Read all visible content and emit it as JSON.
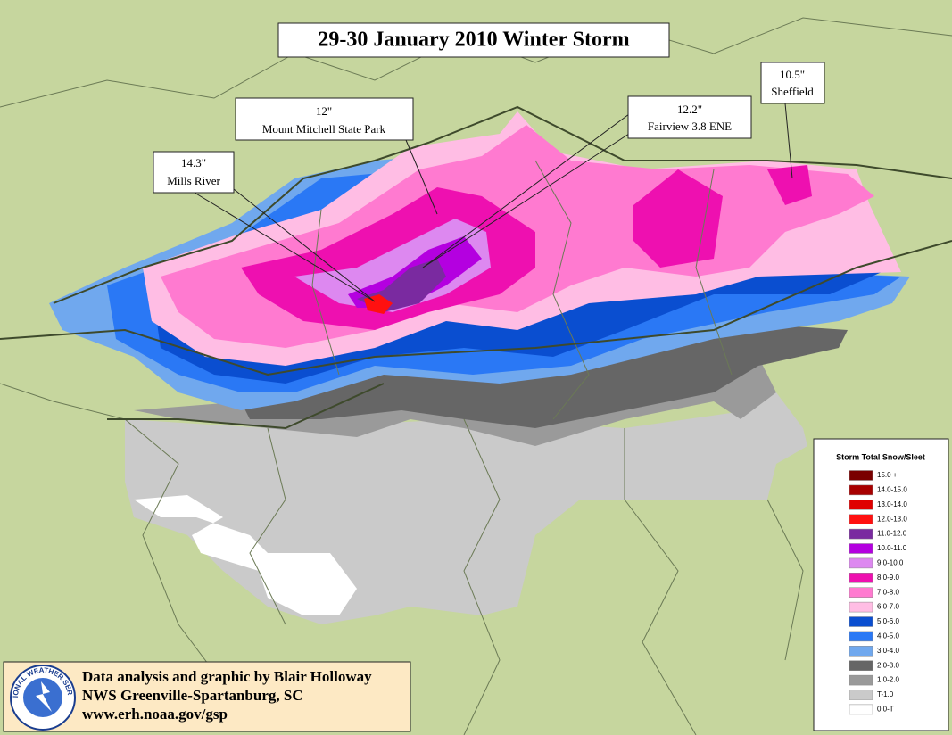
{
  "title": "29-30 January 2010 Winter Storm",
  "annotations": [
    {
      "amount": "14.3\"",
      "place": "Mills River"
    },
    {
      "amount": "12\"",
      "place": "Mount Mitchell State Park"
    },
    {
      "amount": "12.2\"",
      "place": "Fairview 3.8 ENE"
    },
    {
      "amount": "10.5\"",
      "place": "Sheffield"
    }
  ],
  "legend": {
    "title": "Storm Total Snow/Sleet",
    "items": [
      {
        "label": "15.0 +",
        "color": "#7a0000"
      },
      {
        "label": "14.0-15.0",
        "color": "#a80000"
      },
      {
        "label": "13.0-14.0",
        "color": "#e00000"
      },
      {
        "label": "12.0-13.0",
        "color": "#ff1010"
      },
      {
        "label": "11.0-12.0",
        "color": "#7a2aa0"
      },
      {
        "label": "10.0-11.0",
        "color": "#b400e0"
      },
      {
        "label": "9.0-10.0",
        "color": "#dd88f0"
      },
      {
        "label": "8.0-9.0",
        "color": "#ee10b0"
      },
      {
        "label": "7.0-8.0",
        "color": "#ff7ad0"
      },
      {
        "label": "6.0-7.0",
        "color": "#ffbde4"
      },
      {
        "label": "5.0-6.0",
        "color": "#0a4ed0"
      },
      {
        "label": "4.0-5.0",
        "color": "#2a78f5"
      },
      {
        "label": "3.0-4.0",
        "color": "#70a8ee"
      },
      {
        "label": "2.0-3.0",
        "color": "#666666"
      },
      {
        "label": "1.0-2.0",
        "color": "#9a9a9a"
      },
      {
        "label": "T-1.0",
        "color": "#cacaca"
      },
      {
        "label": "0.0-T",
        "color": "#ffffff"
      }
    ]
  },
  "credits": [
    "Data analysis and graphic by Blair Holloway",
    "NWS Greenville-Spartanburg, SC",
    "www.erh.noaa.gov/gsp"
  ],
  "logo_text": "NATIONAL WEATHER SERVICE"
}
